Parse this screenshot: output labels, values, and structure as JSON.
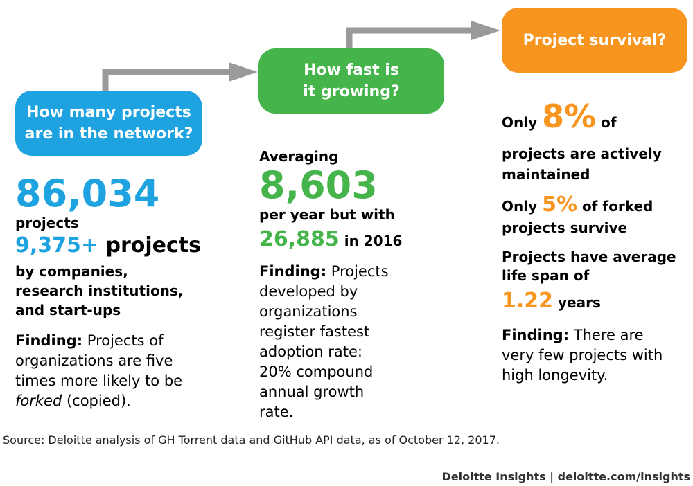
{
  "colors": {
    "blue": "#1ea3e0",
    "green": "#45b44b",
    "orange": "#f7951e",
    "arrow": "#9a9a9a"
  },
  "steps": [
    {
      "question_line1": "How many projects",
      "question_line2": "are in the network?"
    },
    {
      "question_line1": "How fast is",
      "question_line2": "it growing?"
    },
    {
      "question_line1": "Project survival?"
    }
  ],
  "col1": {
    "big_number": "86,034",
    "big_unit": "projects",
    "number2": "9,375+",
    "number2_unit": " projects",
    "lines": [
      "by companies,",
      "research institutions,",
      "and start-ups"
    ],
    "finding_label": "Finding:",
    "finding_a": " Projects of organizations are five times more likely to be ",
    "finding_italic": "forked",
    "finding_b": " (copied)."
  },
  "col2": {
    "intro": "Averaging",
    "big_number": "8,603",
    "line": "per year but with",
    "number2": "26,885",
    "number2_suffix": " in 2016",
    "finding_label": "Finding:",
    "finding_text": " Projects developed by organizations register fastest adoption rate: 20% compound annual growth rate."
  },
  "col3": {
    "only1": "Only ",
    "pct1": "8%",
    "of1": " of",
    "rest1": "projects are actively maintained",
    "only2": "Only ",
    "pct2": "5%",
    "rest2": " of forked projects survive",
    "life": "Projects have average life span of",
    "years_num": "1.22",
    "years_unit": " years",
    "finding_label": "Finding:",
    "finding_text": " There are very few projects with high longevity."
  },
  "source": "Source: Deloitte analysis of GH Torrent data and GitHub API data, as of October 12, 2017.",
  "footer": "Deloitte Insights | deloitte.com/insights"
}
